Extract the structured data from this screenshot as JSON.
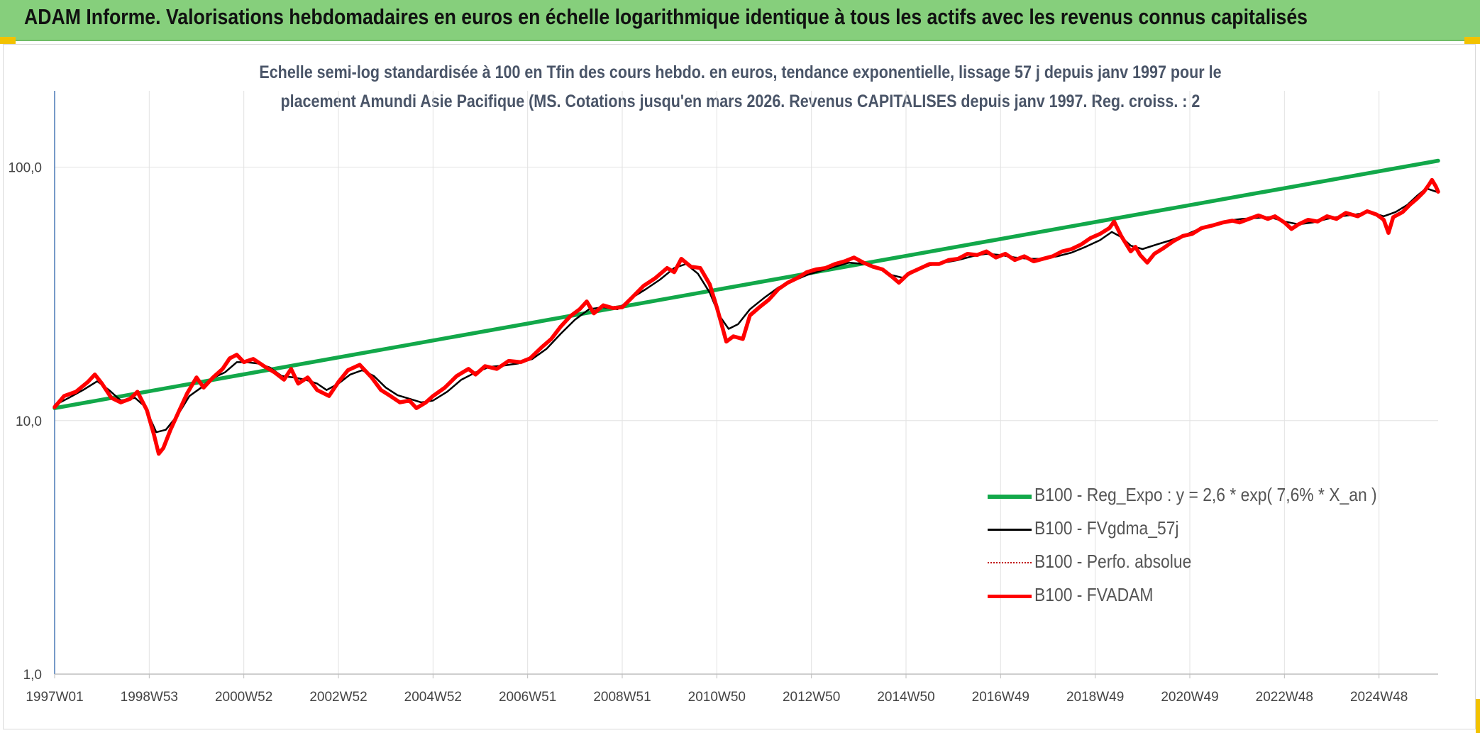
{
  "header": {
    "title": "ADAM Informe. Valorisations hebdomadaires en euros en échelle logarithmique identique à tous les actifs avec les revenus connus capitalisés"
  },
  "chart_data": {
    "type": "line",
    "title_line1": "Echelle semi-log standardisée à 100 en Tfin des cours hebdo. en euros, tendance exponentielle, lissage 57 j depuis janv 1997 pour le",
    "title_line2": "placement Amundi Asie Pacifique (MS. Cotations jusqu'en mars 2026. Revenus CAPITALISES depuis janv 1997. Reg. croiss. : 2",
    "y_scale": "log",
    "ylim": [
      1,
      200
    ],
    "y_ticks": [
      {
        "value": 1,
        "label": "1,0"
      },
      {
        "value": 10,
        "label": "10,0"
      },
      {
        "value": 100,
        "label": "100,0"
      }
    ],
    "x_start": 1997.0,
    "x_end": 2026.25,
    "x_ticks": [
      {
        "x": 1997.0,
        "label": "1997W01"
      },
      {
        "x": 1999.0,
        "label": "1998W53"
      },
      {
        "x": 2001.0,
        "label": "2000W52"
      },
      {
        "x": 2003.0,
        "label": "2002W52"
      },
      {
        "x": 2005.0,
        "label": "2004W52"
      },
      {
        "x": 2007.0,
        "label": "2006W51"
      },
      {
        "x": 2009.0,
        "label": "2008W51"
      },
      {
        "x": 2011.0,
        "label": "2010W50"
      },
      {
        "x": 2013.0,
        "label": "2012W50"
      },
      {
        "x": 2015.0,
        "label": "2014W50"
      },
      {
        "x": 2017.0,
        "label": "2016W49"
      },
      {
        "x": 2019.0,
        "label": "2018W49"
      },
      {
        "x": 2021.0,
        "label": "2020W49"
      },
      {
        "x": 2023.0,
        "label": "2022W48"
      },
      {
        "x": 2025.0,
        "label": "2024W48"
      }
    ],
    "grid": true,
    "legend_position": "bottom-right",
    "series": [
      {
        "name": "B100 - Reg_Expo : y = 2,6 * exp( 7,6% *  X_an )",
        "color": "#12a84a",
        "style": "thick",
        "points": [
          [
            1997.0,
            11.2
          ],
          [
            2026.25,
            106.0
          ]
        ]
      },
      {
        "name": "B100 - FVgdma_57j",
        "color": "#000000",
        "style": "thin",
        "points": [
          [
            1997.0,
            11.5
          ],
          [
            1997.3,
            12.3
          ],
          [
            1997.6,
            13.2
          ],
          [
            1997.9,
            14.3
          ],
          [
            1998.15,
            13.2
          ],
          [
            1998.4,
            12.0
          ],
          [
            1998.7,
            12.3
          ],
          [
            1998.9,
            11.4
          ],
          [
            1999.15,
            9.0
          ],
          [
            1999.35,
            9.2
          ],
          [
            1999.6,
            10.5
          ],
          [
            1999.85,
            12.5
          ],
          [
            2000.1,
            13.5
          ],
          [
            2000.3,
            14.6
          ],
          [
            2000.6,
            15.5
          ],
          [
            2000.85,
            17.0
          ],
          [
            2001.05,
            17.0
          ],
          [
            2001.3,
            16.8
          ],
          [
            2001.55,
            16.2
          ],
          [
            2001.8,
            15.0
          ],
          [
            2002.05,
            14.8
          ],
          [
            2002.3,
            14.5
          ],
          [
            2002.55,
            14.0
          ],
          [
            2002.75,
            13.2
          ],
          [
            2003.0,
            14.0
          ],
          [
            2003.25,
            15.2
          ],
          [
            2003.5,
            15.8
          ],
          [
            2003.75,
            15.0
          ],
          [
            2004.0,
            13.5
          ],
          [
            2004.25,
            12.6
          ],
          [
            2004.5,
            12.2
          ],
          [
            2004.75,
            11.8
          ],
          [
            2005.0,
            12.0
          ],
          [
            2005.3,
            13.0
          ],
          [
            2005.6,
            14.5
          ],
          [
            2005.9,
            15.5
          ],
          [
            2006.2,
            16.3
          ],
          [
            2006.5,
            16.5
          ],
          [
            2006.8,
            16.8
          ],
          [
            2007.1,
            17.5
          ],
          [
            2007.4,
            19.2
          ],
          [
            2007.7,
            22.0
          ],
          [
            2008.0,
            25.0
          ],
          [
            2008.3,
            27.5
          ],
          [
            2008.6,
            28.0
          ],
          [
            2008.9,
            27.5
          ],
          [
            2009.2,
            30.5
          ],
          [
            2009.5,
            33.0
          ],
          [
            2009.8,
            36.0
          ],
          [
            2010.1,
            40.0
          ],
          [
            2010.35,
            41.5
          ],
          [
            2010.6,
            38.0
          ],
          [
            2010.85,
            32.0
          ],
          [
            2011.05,
            26.0
          ],
          [
            2011.25,
            23.0
          ],
          [
            2011.45,
            24.0
          ],
          [
            2011.7,
            27.5
          ],
          [
            2012.0,
            30.5
          ],
          [
            2012.3,
            33.5
          ],
          [
            2012.6,
            35.5
          ],
          [
            2012.9,
            37.5
          ],
          [
            2013.2,
            39.0
          ],
          [
            2013.5,
            40.5
          ],
          [
            2013.8,
            42.0
          ],
          [
            2014.1,
            41.5
          ],
          [
            2014.4,
            40.0
          ],
          [
            2014.7,
            37.5
          ],
          [
            2014.95,
            36.5
          ],
          [
            2015.2,
            39.0
          ],
          [
            2015.5,
            41.0
          ],
          [
            2015.8,
            42.0
          ],
          [
            2016.1,
            43.0
          ],
          [
            2016.4,
            44.5
          ],
          [
            2016.7,
            45.5
          ],
          [
            2017.0,
            45.0
          ],
          [
            2017.3,
            44.0
          ],
          [
            2017.6,
            43.5
          ],
          [
            2017.9,
            43.5
          ],
          [
            2018.2,
            44.5
          ],
          [
            2018.5,
            46.0
          ],
          [
            2018.8,
            48.5
          ],
          [
            2019.1,
            51.5
          ],
          [
            2019.35,
            55.5
          ],
          [
            2019.55,
            53.0
          ],
          [
            2019.75,
            49.0
          ],
          [
            2020.0,
            47.5
          ],
          [
            2020.3,
            49.5
          ],
          [
            2020.6,
            51.5
          ],
          [
            2020.9,
            54.0
          ],
          [
            2021.2,
            57.0
          ],
          [
            2021.5,
            59.5
          ],
          [
            2021.8,
            61.5
          ],
          [
            2022.1,
            62.5
          ],
          [
            2022.4,
            63.0
          ],
          [
            2022.7,
            63.5
          ],
          [
            2023.0,
            61.0
          ],
          [
            2023.3,
            59.5
          ],
          [
            2023.6,
            60.5
          ],
          [
            2023.9,
            62.5
          ],
          [
            2024.2,
            64.0
          ],
          [
            2024.5,
            65.0
          ],
          [
            2024.8,
            66.5
          ],
          [
            2025.1,
            64.0
          ],
          [
            2025.35,
            66.5
          ],
          [
            2025.6,
            71.0
          ],
          [
            2025.8,
            77.0
          ],
          [
            2026.0,
            82.5
          ],
          [
            2026.25,
            79.5
          ]
        ]
      },
      {
        "name": "B100 - Perfo. absolue",
        "color": "#c00000",
        "style": "dotted",
        "points": []
      },
      {
        "name": "B100 - FVADAM",
        "color": "#ff0000",
        "style": "thick",
        "points": [
          [
            1997.0,
            11.3
          ],
          [
            1997.2,
            12.5
          ],
          [
            1997.45,
            13.0
          ],
          [
            1997.7,
            14.2
          ],
          [
            1997.85,
            15.2
          ],
          [
            1998.0,
            14.0
          ],
          [
            1998.2,
            12.3
          ],
          [
            1998.4,
            11.8
          ],
          [
            1998.6,
            12.2
          ],
          [
            1998.75,
            13.0
          ],
          [
            1998.95,
            11.0
          ],
          [
            1999.1,
            8.8
          ],
          [
            1999.2,
            7.4
          ],
          [
            1999.3,
            7.8
          ],
          [
            1999.45,
            9.2
          ],
          [
            1999.6,
            10.6
          ],
          [
            1999.8,
            12.8
          ],
          [
            2000.0,
            14.8
          ],
          [
            2000.15,
            13.5
          ],
          [
            2000.35,
            14.8
          ],
          [
            2000.55,
            16.0
          ],
          [
            2000.7,
            17.6
          ],
          [
            2000.85,
            18.2
          ],
          [
            2001.0,
            17.0
          ],
          [
            2001.2,
            17.5
          ],
          [
            2001.45,
            16.3
          ],
          [
            2001.65,
            15.5
          ],
          [
            2001.85,
            14.5
          ],
          [
            2002.0,
            16.0
          ],
          [
            2002.15,
            14.0
          ],
          [
            2002.35,
            14.8
          ],
          [
            2002.55,
            13.2
          ],
          [
            2002.8,
            12.5
          ],
          [
            2003.0,
            14.2
          ],
          [
            2003.2,
            15.8
          ],
          [
            2003.45,
            16.6
          ],
          [
            2003.7,
            14.8
          ],
          [
            2003.9,
            13.2
          ],
          [
            2004.1,
            12.5
          ],
          [
            2004.3,
            11.8
          ],
          [
            2004.5,
            12.0
          ],
          [
            2004.65,
            11.2
          ],
          [
            2004.85,
            11.8
          ],
          [
            2005.0,
            12.5
          ],
          [
            2005.25,
            13.5
          ],
          [
            2005.5,
            15.0
          ],
          [
            2005.75,
            16.0
          ],
          [
            2005.9,
            15.2
          ],
          [
            2006.1,
            16.4
          ],
          [
            2006.35,
            16.0
          ],
          [
            2006.6,
            17.2
          ],
          [
            2006.85,
            17.0
          ],
          [
            2007.05,
            17.6
          ],
          [
            2007.3,
            19.5
          ],
          [
            2007.5,
            21.0
          ],
          [
            2007.7,
            23.5
          ],
          [
            2007.9,
            25.8
          ],
          [
            2008.1,
            27.5
          ],
          [
            2008.25,
            29.5
          ],
          [
            2008.4,
            26.5
          ],
          [
            2008.6,
            28.5
          ],
          [
            2008.8,
            27.8
          ],
          [
            2009.0,
            28.0
          ],
          [
            2009.2,
            30.5
          ],
          [
            2009.45,
            34.0
          ],
          [
            2009.7,
            36.5
          ],
          [
            2009.95,
            40.0
          ],
          [
            2010.1,
            38.5
          ],
          [
            2010.25,
            43.5
          ],
          [
            2010.45,
            40.5
          ],
          [
            2010.65,
            40.0
          ],
          [
            2010.85,
            34.5
          ],
          [
            2011.0,
            28.0
          ],
          [
            2011.1,
            24.0
          ],
          [
            2011.2,
            20.5
          ],
          [
            2011.35,
            21.5
          ],
          [
            2011.55,
            21.0
          ],
          [
            2011.7,
            26.0
          ],
          [
            2011.9,
            28.0
          ],
          [
            2012.1,
            30.0
          ],
          [
            2012.3,
            33.0
          ],
          [
            2012.5,
            35.0
          ],
          [
            2012.7,
            36.5
          ],
          [
            2012.9,
            38.5
          ],
          [
            2013.1,
            39.5
          ],
          [
            2013.3,
            40.0
          ],
          [
            2013.5,
            41.5
          ],
          [
            2013.7,
            42.5
          ],
          [
            2013.9,
            44.0
          ],
          [
            2014.1,
            42.0
          ],
          [
            2014.3,
            40.5
          ],
          [
            2014.5,
            39.5
          ],
          [
            2014.7,
            37.0
          ],
          [
            2014.85,
            35.0
          ],
          [
            2015.05,
            38.0
          ],
          [
            2015.25,
            39.5
          ],
          [
            2015.5,
            41.5
          ],
          [
            2015.7,
            41.5
          ],
          [
            2015.9,
            43.0
          ],
          [
            2016.1,
            43.5
          ],
          [
            2016.3,
            45.5
          ],
          [
            2016.5,
            45.0
          ],
          [
            2016.7,
            46.5
          ],
          [
            2016.9,
            44.0
          ],
          [
            2017.1,
            45.5
          ],
          [
            2017.3,
            43.0
          ],
          [
            2017.5,
            44.5
          ],
          [
            2017.7,
            42.5
          ],
          [
            2017.9,
            43.5
          ],
          [
            2018.1,
            44.5
          ],
          [
            2018.3,
            46.5
          ],
          [
            2018.5,
            47.5
          ],
          [
            2018.7,
            49.5
          ],
          [
            2018.9,
            52.5
          ],
          [
            2019.1,
            54.5
          ],
          [
            2019.3,
            57.5
          ],
          [
            2019.4,
            61.0
          ],
          [
            2019.55,
            53.5
          ],
          [
            2019.75,
            46.5
          ],
          [
            2019.85,
            48.5
          ],
          [
            2019.95,
            45.0
          ],
          [
            2020.1,
            42.0
          ],
          [
            2020.25,
            45.5
          ],
          [
            2020.45,
            48.0
          ],
          [
            2020.65,
            51.0
          ],
          [
            2020.85,
            53.5
          ],
          [
            2021.05,
            54.5
          ],
          [
            2021.25,
            57.5
          ],
          [
            2021.5,
            59.0
          ],
          [
            2021.7,
            60.5
          ],
          [
            2021.9,
            61.5
          ],
          [
            2022.05,
            60.5
          ],
          [
            2022.25,
            62.5
          ],
          [
            2022.45,
            64.5
          ],
          [
            2022.65,
            62.5
          ],
          [
            2022.8,
            64.0
          ],
          [
            2023.0,
            60.5
          ],
          [
            2023.15,
            57.0
          ],
          [
            2023.3,
            59.5
          ],
          [
            2023.5,
            62.0
          ],
          [
            2023.7,
            61.0
          ],
          [
            2023.9,
            64.0
          ],
          [
            2024.1,
            62.5
          ],
          [
            2024.3,
            66.0
          ],
          [
            2024.55,
            64.0
          ],
          [
            2024.75,
            67.0
          ],
          [
            2024.95,
            65.0
          ],
          [
            2025.1,
            62.0
          ],
          [
            2025.2,
            55.0
          ],
          [
            2025.3,
            63.5
          ],
          [
            2025.5,
            66.5
          ],
          [
            2025.65,
            71.0
          ],
          [
            2025.8,
            75.0
          ],
          [
            2025.95,
            80.0
          ],
          [
            2026.05,
            85.0
          ],
          [
            2026.12,
            89.0
          ],
          [
            2026.2,
            84.0
          ],
          [
            2026.25,
            80.0
          ]
        ]
      }
    ]
  }
}
